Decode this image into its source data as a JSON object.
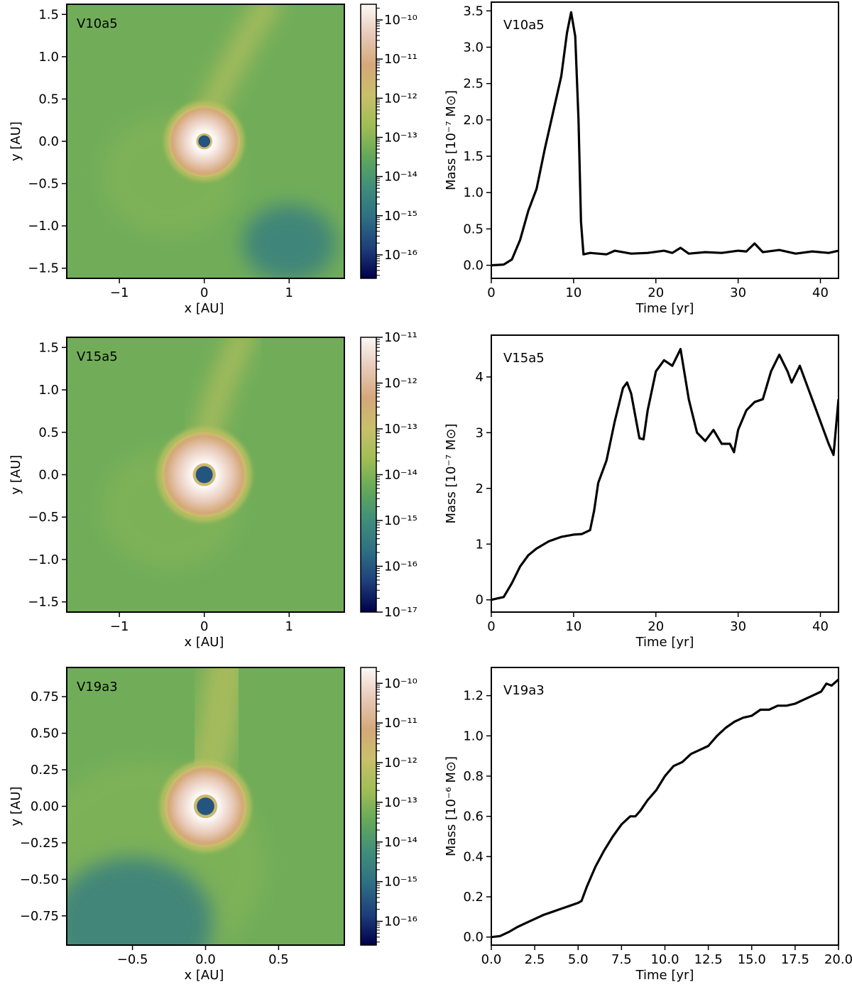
{
  "colors": {
    "colormap": [
      "#00004a",
      "#1e3f7a",
      "#2f6f84",
      "#3f8e7b",
      "#63a85a",
      "#9fbd55",
      "#c8c06a",
      "#d4a878",
      "#e8c9b8",
      "#fcf8f6"
    ],
    "line": "#000000"
  },
  "chart_data": [
    {
      "type": "heatmap",
      "label": "V10a5",
      "xlabel": "x [AU]",
      "ylabel": "y [AU]",
      "xlim": [
        -1.62,
        1.65
      ],
      "ylim": [
        -1.62,
        1.62
      ],
      "xticks": [
        {
          "v": -1,
          "t": "−1"
        },
        {
          "v": 0,
          "t": "0"
        },
        {
          "v": 1,
          "t": "1"
        }
      ],
      "yticks": [
        {
          "v": 1.5,
          "t": "1.5"
        },
        {
          "v": 1.0,
          "t": "1.0"
        },
        {
          "v": 0.5,
          "t": "0.5"
        },
        {
          "v": 0.0,
          "t": "0.0"
        },
        {
          "v": -0.5,
          "t": "−0.5"
        },
        {
          "v": -1.0,
          "t": "−1.0"
        },
        {
          "v": -1.5,
          "t": "−1.5"
        }
      ],
      "colorbar": {
        "log_min": -16.6,
        "log_max": -9.6,
        "ticks": [
          {
            "e": -10,
            "t": "10⁻¹⁰"
          },
          {
            "e": -11,
            "t": "10⁻¹¹"
          },
          {
            "e": -12,
            "t": "10⁻¹²"
          },
          {
            "e": -13,
            "t": "10⁻¹³"
          },
          {
            "e": -14,
            "t": "10⁻¹⁴"
          },
          {
            "e": -15,
            "t": "10⁻¹⁵"
          },
          {
            "e": -16,
            "t": "10⁻¹⁶"
          }
        ]
      },
      "features": {
        "ring_inner_au": 0.12,
        "ring_outer_au": 0.42,
        "hole_au": 0.07,
        "stream": [
          [
            0.03,
            0.3
          ],
          [
            0.25,
            0.75
          ],
          [
            0.55,
            1.3
          ],
          [
            0.75,
            1.62
          ]
        ],
        "dark_region": [
          1.0,
          -1.2
        ]
      }
    },
    {
      "type": "line",
      "label": "V10a5",
      "xlabel": "Time [yr]",
      "ylabel": "Mass [10⁻⁷ M⊙]",
      "xlim": [
        0,
        42.2
      ],
      "ylim": [
        -0.18,
        3.62
      ],
      "xticks": [
        {
          "v": 0,
          "t": "0"
        },
        {
          "v": 10,
          "t": "10"
        },
        {
          "v": 20,
          "t": "20"
        },
        {
          "v": 30,
          "t": "30"
        },
        {
          "v": 40,
          "t": "40"
        }
      ],
      "yticks": [
        {
          "v": 0.0,
          "t": "0.0"
        },
        {
          "v": 0.5,
          "t": "0.5"
        },
        {
          "v": 1.0,
          "t": "1.0"
        },
        {
          "v": 1.5,
          "t": "1.5"
        },
        {
          "v": 2.0,
          "t": "2.0"
        },
        {
          "v": 2.5,
          "t": "2.5"
        },
        {
          "v": 3.0,
          "t": "3.0"
        },
        {
          "v": 3.5,
          "t": "3.5"
        }
      ],
      "x": [
        0,
        1.5,
        2.5,
        3.5,
        4.5,
        5.5,
        6.5,
        7.5,
        8.5,
        9.2,
        9.7,
        10.2,
        10.6,
        10.9,
        11.2,
        12,
        14,
        15,
        17,
        19,
        21,
        22,
        23,
        24,
        26,
        28,
        30,
        31,
        32,
        33,
        35,
        37,
        39,
        41,
        42.2
      ],
      "values": [
        0.0,
        0.01,
        0.08,
        0.35,
        0.75,
        1.05,
        1.6,
        2.1,
        2.6,
        3.2,
        3.48,
        3.15,
        2.0,
        0.6,
        0.15,
        0.17,
        0.15,
        0.2,
        0.16,
        0.17,
        0.2,
        0.17,
        0.24,
        0.16,
        0.18,
        0.17,
        0.2,
        0.19,
        0.3,
        0.18,
        0.21,
        0.16,
        0.19,
        0.17,
        0.2
      ]
    },
    {
      "type": "heatmap",
      "label": "V15a5",
      "xlabel": "x [AU]",
      "ylabel": "y [AU]",
      "xlim": [
        -1.62,
        1.65
      ],
      "ylim": [
        -1.62,
        1.62
      ],
      "xticks": [
        {
          "v": -1,
          "t": "−1"
        },
        {
          "v": 0,
          "t": "0"
        },
        {
          "v": 1,
          "t": "1"
        }
      ],
      "yticks": [
        {
          "v": 1.5,
          "t": "1.5"
        },
        {
          "v": 1.0,
          "t": "1.0"
        },
        {
          "v": 0.5,
          "t": "0.5"
        },
        {
          "v": 0.0,
          "t": "0.0"
        },
        {
          "v": -0.5,
          "t": "−0.5"
        },
        {
          "v": -1.0,
          "t": "−1.0"
        },
        {
          "v": -1.5,
          "t": "−1.5"
        }
      ],
      "colorbar": {
        "log_min": -17,
        "log_max": -11,
        "ticks": [
          {
            "e": -11,
            "t": "10⁻¹¹"
          },
          {
            "e": -12,
            "t": "10⁻¹²"
          },
          {
            "e": -13,
            "t": "10⁻¹³"
          },
          {
            "e": -14,
            "t": "10⁻¹⁴"
          },
          {
            "e": -15,
            "t": "10⁻¹⁵"
          },
          {
            "e": -16,
            "t": "10⁻¹⁶"
          },
          {
            "e": -17,
            "t": "10⁻¹⁷"
          }
        ]
      },
      "features": {
        "ring_inner_au": 0.15,
        "ring_outer_au": 0.5,
        "hole_au": 0.1,
        "stream": [
          [
            0.0,
            0.35
          ],
          [
            0.15,
            0.9
          ],
          [
            0.35,
            1.4
          ],
          [
            0.45,
            1.62
          ]
        ],
        "dark_region": null
      }
    },
    {
      "type": "line",
      "label": "V15a5",
      "xlabel": "Time [yr]",
      "ylabel": "Mass [10⁻⁷ M⊙]",
      "xlim": [
        0,
        42.2
      ],
      "ylim": [
        -0.22,
        4.75
      ],
      "xticks": [
        {
          "v": 0,
          "t": "0"
        },
        {
          "v": 10,
          "t": "10"
        },
        {
          "v": 20,
          "t": "20"
        },
        {
          "v": 30,
          "t": "30"
        },
        {
          "v": 40,
          "t": "40"
        }
      ],
      "yticks": [
        {
          "v": 0,
          "t": "0"
        },
        {
          "v": 1,
          "t": "1"
        },
        {
          "v": 2,
          "t": "2"
        },
        {
          "v": 3,
          "t": "3"
        },
        {
          "v": 4,
          "t": "4"
        }
      ],
      "x": [
        0,
        1.5,
        2.5,
        3.5,
        4.5,
        5.5,
        7,
        8.5,
        10,
        11,
        12,
        12.5,
        13,
        14,
        15,
        16,
        16.5,
        17,
        18,
        18.5,
        19,
        20,
        21,
        22,
        23,
        24,
        25,
        26,
        27,
        28,
        29,
        29.5,
        30,
        31,
        32,
        33,
        34,
        35,
        36,
        36.5,
        37.5,
        38.5,
        40,
        41,
        41.6,
        42.2
      ],
      "values": [
        0.0,
        0.05,
        0.3,
        0.6,
        0.8,
        0.92,
        1.05,
        1.13,
        1.17,
        1.18,
        1.25,
        1.6,
        2.1,
        2.5,
        3.2,
        3.8,
        3.9,
        3.7,
        2.9,
        2.88,
        3.4,
        4.1,
        4.3,
        4.2,
        4.5,
        3.6,
        3.0,
        2.85,
        3.05,
        2.8,
        2.8,
        2.65,
        3.05,
        3.4,
        3.55,
        3.6,
        4.1,
        4.4,
        4.1,
        3.9,
        4.2,
        3.8,
        3.2,
        2.8,
        2.6,
        3.6
      ]
    },
    {
      "type": "heatmap",
      "label": "V19a3",
      "xlabel": "x [AU]",
      "ylabel": "y [AU]",
      "xlim": [
        -0.95,
        0.95
      ],
      "ylim": [
        -0.95,
        0.95
      ],
      "xticks": [
        {
          "v": -0.5,
          "t": "−0.5"
        },
        {
          "v": 0.0,
          "t": "0.0"
        },
        {
          "v": 0.5,
          "t": "0.5"
        }
      ],
      "yticks": [
        {
          "v": 0.75,
          "t": "0.75"
        },
        {
          "v": 0.5,
          "t": "0.50"
        },
        {
          "v": 0.25,
          "t": "0.25"
        },
        {
          "v": 0.0,
          "t": "0.00"
        },
        {
          "v": -0.25,
          "t": "−0.25"
        },
        {
          "v": -0.5,
          "t": "−0.50"
        },
        {
          "v": -0.75,
          "t": "−0.75"
        }
      ],
      "colorbar": {
        "log_min": -16.6,
        "log_max": -9.6,
        "ticks": [
          {
            "e": -10,
            "t": "10⁻¹⁰"
          },
          {
            "e": -11,
            "t": "10⁻¹¹"
          },
          {
            "e": -12,
            "t": "10⁻¹²"
          },
          {
            "e": -13,
            "t": "10⁻¹³"
          },
          {
            "e": -14,
            "t": "10⁻¹⁴"
          },
          {
            "e": -15,
            "t": "10⁻¹⁵"
          },
          {
            "e": -16,
            "t": "10⁻¹⁶"
          }
        ]
      },
      "features": {
        "ring_inner_au": 0.09,
        "ring_outer_au": 0.28,
        "hole_au": 0.06,
        "stream": [
          [
            0.0,
            0.2
          ],
          [
            0.08,
            0.5
          ],
          [
            0.12,
            0.8
          ],
          [
            0.15,
            0.95
          ]
        ],
        "dark_region": [
          -0.5,
          -0.8
        ]
      }
    },
    {
      "type": "line",
      "label": "V19a3",
      "xlabel": "Time [yr]",
      "ylabel": "Mass [10⁻⁶ M⊙]",
      "xlim": [
        0,
        20.0
      ],
      "ylim": [
        -0.04,
        1.34
      ],
      "xticks": [
        {
          "v": 0,
          "t": "0.0"
        },
        {
          "v": 2.5,
          "t": "2.5"
        },
        {
          "v": 5,
          "t": "5.0"
        },
        {
          "v": 7.5,
          "t": "7.5"
        },
        {
          "v": 10,
          "t": "10.0"
        },
        {
          "v": 12.5,
          "t": "12.5"
        },
        {
          "v": 15,
          "t": "15.0"
        },
        {
          "v": 17.5,
          "t": "17.5"
        },
        {
          "v": 20,
          "t": "20.0"
        }
      ],
      "yticks": [
        {
          "v": 0.0,
          "t": "0.0"
        },
        {
          "v": 0.2,
          "t": "0.2"
        },
        {
          "v": 0.4,
          "t": "0.4"
        },
        {
          "v": 0.6,
          "t": "0.6"
        },
        {
          "v": 0.8,
          "t": "0.8"
        },
        {
          "v": 1.0,
          "t": "1.0"
        },
        {
          "v": 1.2,
          "t": "1.2"
        }
      ],
      "x": [
        0,
        0.5,
        1,
        1.5,
        2,
        2.5,
        3,
        3.5,
        4,
        4.5,
        5,
        5.2,
        5.5,
        6,
        6.5,
        7,
        7.5,
        8,
        8.3,
        8.6,
        9,
        9.5,
        10,
        10.5,
        11,
        11.5,
        12,
        12.5,
        13,
        13.5,
        14,
        14.5,
        15,
        15.5,
        16,
        16.5,
        17,
        17.5,
        18,
        18.5,
        19,
        19.3,
        19.6,
        20
      ],
      "values": [
        0.0,
        0.005,
        0.025,
        0.05,
        0.07,
        0.09,
        0.11,
        0.125,
        0.14,
        0.155,
        0.17,
        0.18,
        0.25,
        0.35,
        0.43,
        0.5,
        0.56,
        0.6,
        0.6,
        0.63,
        0.68,
        0.73,
        0.8,
        0.85,
        0.87,
        0.91,
        0.93,
        0.95,
        1.0,
        1.04,
        1.07,
        1.09,
        1.1,
        1.13,
        1.13,
        1.15,
        1.15,
        1.16,
        1.18,
        1.2,
        1.22,
        1.26,
        1.25,
        1.28
      ]
    }
  ]
}
